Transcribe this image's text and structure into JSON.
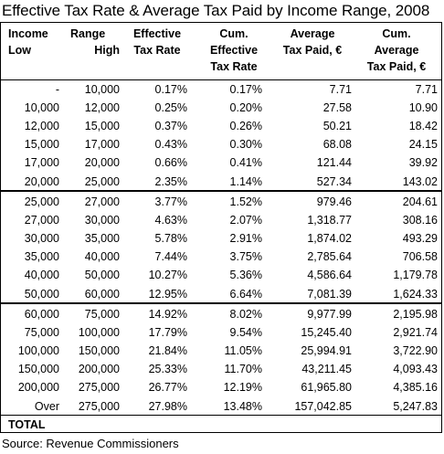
{
  "title": "Effective Tax Rate & Average Tax Paid by Income Range, 2008",
  "headers": {
    "income": "Income",
    "range": "Range",
    "low": "Low",
    "high": "High",
    "eff_rate": [
      "Effective",
      "Tax Rate"
    ],
    "cum_eff_rate": [
      "Cum.",
      "Effective",
      "Tax Rate"
    ],
    "avg_tax": [
      "Average",
      "Tax Paid, €"
    ],
    "cum_avg_tax": [
      "Cum.",
      "Average",
      "Tax Paid, €"
    ]
  },
  "groups": [
    [
      [
        "-",
        "10,000",
        "0.17%",
        "0.17%",
        "7.71",
        "7.71"
      ],
      [
        "10,000",
        "12,000",
        "0.25%",
        "0.20%",
        "27.58",
        "10.90"
      ],
      [
        "12,000",
        "15,000",
        "0.37%",
        "0.26%",
        "50.21",
        "18.42"
      ],
      [
        "15,000",
        "17,000",
        "0.43%",
        "0.30%",
        "68.08",
        "24.15"
      ],
      [
        "17,000",
        "20,000",
        "0.66%",
        "0.41%",
        "121.44",
        "39.92"
      ],
      [
        "20,000",
        "25,000",
        "2.35%",
        "1.14%",
        "527.34",
        "143.02"
      ]
    ],
    [
      [
        "25,000",
        "27,000",
        "3.77%",
        "1.52%",
        "979.46",
        "204.61"
      ],
      [
        "27,000",
        "30,000",
        "4.63%",
        "2.07%",
        "1,318.77",
        "308.16"
      ],
      [
        "30,000",
        "35,000",
        "5.78%",
        "2.91%",
        "1,874.02",
        "493.29"
      ],
      [
        "35,000",
        "40,000",
        "7.44%",
        "3.75%",
        "2,785.64",
        "706.58"
      ],
      [
        "40,000",
        "50,000",
        "10.27%",
        "5.36%",
        "4,586.64",
        "1,179.78"
      ],
      [
        "50,000",
        "60,000",
        "12.95%",
        "6.64%",
        "7,081.39",
        "1,624.33"
      ]
    ],
    [
      [
        "60,000",
        "75,000",
        "14.92%",
        "8.02%",
        "9,977.99",
        "2,195.98"
      ],
      [
        "75,000",
        "100,000",
        "17.79%",
        "9.54%",
        "15,245.40",
        "2,921.74"
      ],
      [
        "100,000",
        "150,000",
        "21.84%",
        "11.05%",
        "25,994.91",
        "3,722.90"
      ],
      [
        "150,000",
        "200,000",
        "25.33%",
        "11.70%",
        "43,211.45",
        "4,093.43"
      ],
      [
        "200,000",
        "275,000",
        "26.77%",
        "12.19%",
        "61,965.80",
        "4,385.16"
      ],
      [
        "Over",
        "275,000",
        "27.98%",
        "13.48%",
        "157,042.85",
        "5,247.83"
      ]
    ]
  ],
  "total_label": "TOTAL",
  "source": "Source: Revenue Commissioners"
}
